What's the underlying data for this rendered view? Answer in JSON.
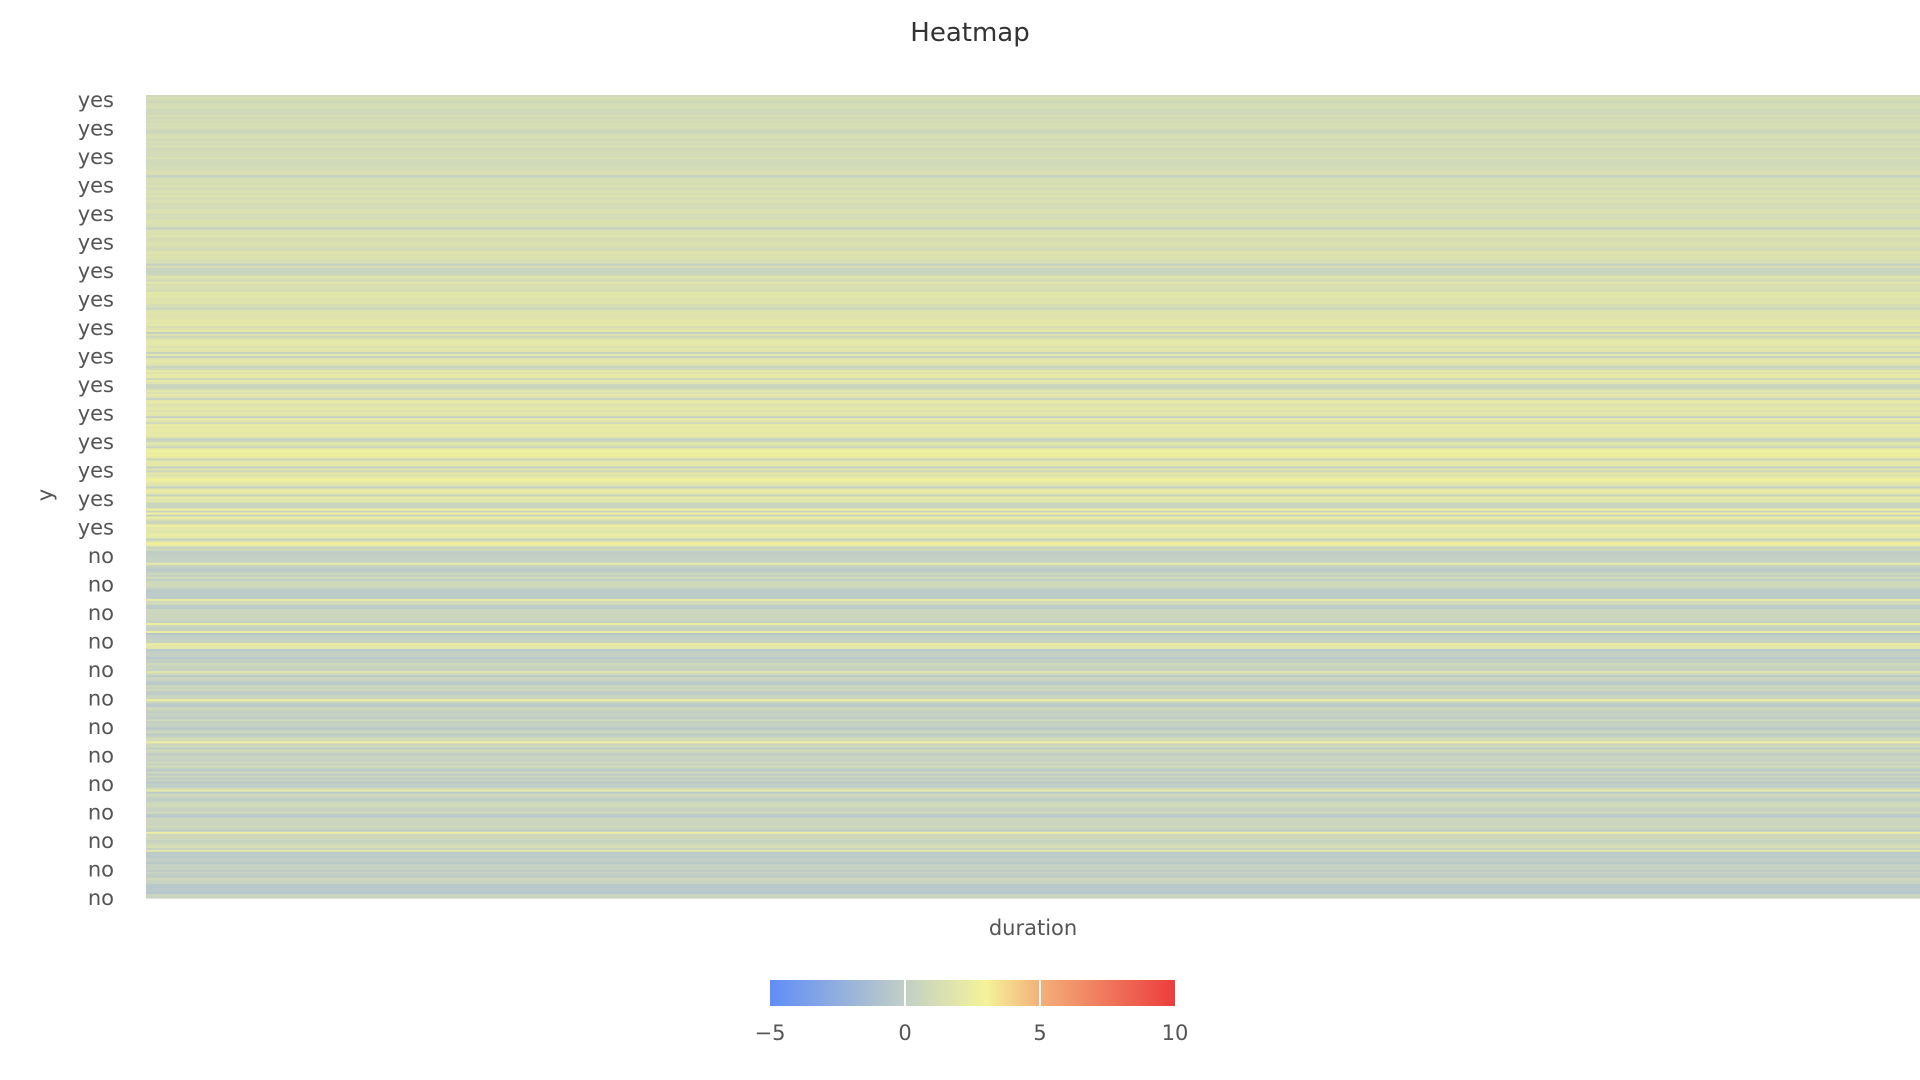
{
  "chart_data": {
    "type": "heatmap",
    "title": "Heatmap",
    "xlabel": "duration",
    "ylabel": "y",
    "y_tick_labels": [
      "yes",
      "yes",
      "yes",
      "yes",
      "yes",
      "yes",
      "yes",
      "yes",
      "yes",
      "yes",
      "yes",
      "yes",
      "yes",
      "yes",
      "yes",
      "yes",
      "no",
      "no",
      "no",
      "no",
      "no",
      "no",
      "no",
      "no",
      "no",
      "no",
      "no",
      "no",
      "no"
    ],
    "y_categories": [
      "yes",
      "no"
    ],
    "row_group_split": {
      "yes": [
        0,
        0.565
      ],
      "no": [
        0.565,
        1
      ]
    },
    "columns": 1,
    "color_scale": {
      "min": -5,
      "max": 10,
      "stops": [
        {
          "value": -5,
          "color": "#5f8df7"
        },
        {
          "value": 0,
          "color": "#c2cfc6"
        },
        {
          "value": 3,
          "color": "#f4f39a"
        },
        {
          "value": 5,
          "color": "#f3b07a"
        },
        {
          "value": 10,
          "color": "#ec3d3d"
        }
      ]
    },
    "legend": {
      "placement": "bottom-center",
      "ticks": [
        "−5",
        "0",
        "5",
        "10"
      ],
      "tick_values": [
        -5,
        0,
        5,
        10
      ]
    },
    "value_summary": {
      "yes_group_range": [
        0.0,
        3.2
      ],
      "no_group_range": [
        -0.6,
        1.4
      ]
    },
    "grid": false
  }
}
